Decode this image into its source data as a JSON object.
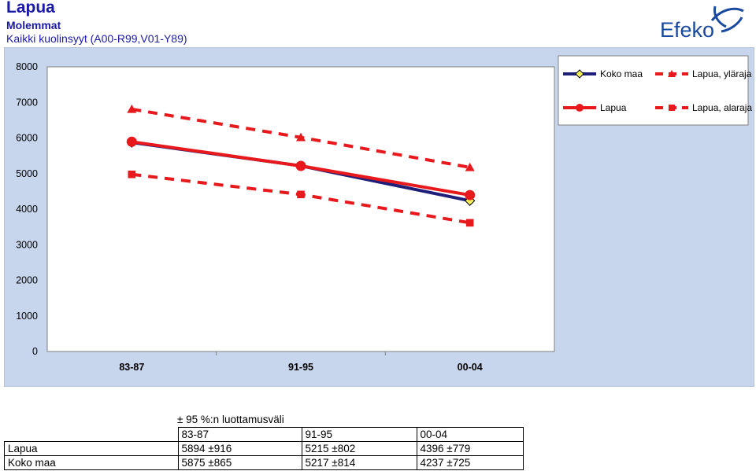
{
  "header": {
    "title": "Lapua",
    "subtitle": "Molemmat",
    "description": "Kaikki kuolinsyyt (A00-R99,V01-Y89)"
  },
  "logo": {
    "text": "Efeko",
    "color": "#1a4aa0"
  },
  "colors": {
    "navy": "#1f1f7a",
    "red": "#e8191c",
    "yellow": "#f4ef5a",
    "panel": "#c7d6ec"
  },
  "chart_data": {
    "type": "line",
    "categories": [
      "83-87",
      "91-95",
      "00-04"
    ],
    "ylim": [
      0,
      8000
    ],
    "yticks": [
      0,
      1000,
      2000,
      3000,
      4000,
      5000,
      6000,
      7000,
      8000
    ],
    "grid": false,
    "legend_position": "top-right",
    "series": [
      {
        "name": "Koko maa",
        "values": [
          5875,
          5217,
          4237
        ],
        "color": "#1f1f7a",
        "marker": "diamond",
        "style": "solid"
      },
      {
        "name": "Lapua",
        "values": [
          5894,
          5215,
          4396
        ],
        "color": "#e8191c",
        "marker": "circle",
        "style": "solid"
      },
      {
        "name": "Lapua, yläraja",
        "values": [
          6810,
          6017,
          5175
        ],
        "color": "#e8191c",
        "marker": "triangle",
        "style": "dashed"
      },
      {
        "name": "Lapua, alaraja",
        "values": [
          4978,
          4413,
          3617
        ],
        "color": "#e8191c",
        "marker": "square",
        "style": "dashed"
      }
    ]
  },
  "ci_table": {
    "caption": "± 95 %:n luottamusväli",
    "headers": [
      "83-87",
      "91-95",
      "00-04"
    ],
    "rows": [
      {
        "label": "Lapua",
        "cells": [
          "5894 ±916",
          "5215 ±802",
          "4396 ±779"
        ]
      },
      {
        "label": "Koko maa",
        "cells": [
          "5875 ±865",
          "5217 ±814",
          "4237 ±725"
        ]
      }
    ]
  }
}
